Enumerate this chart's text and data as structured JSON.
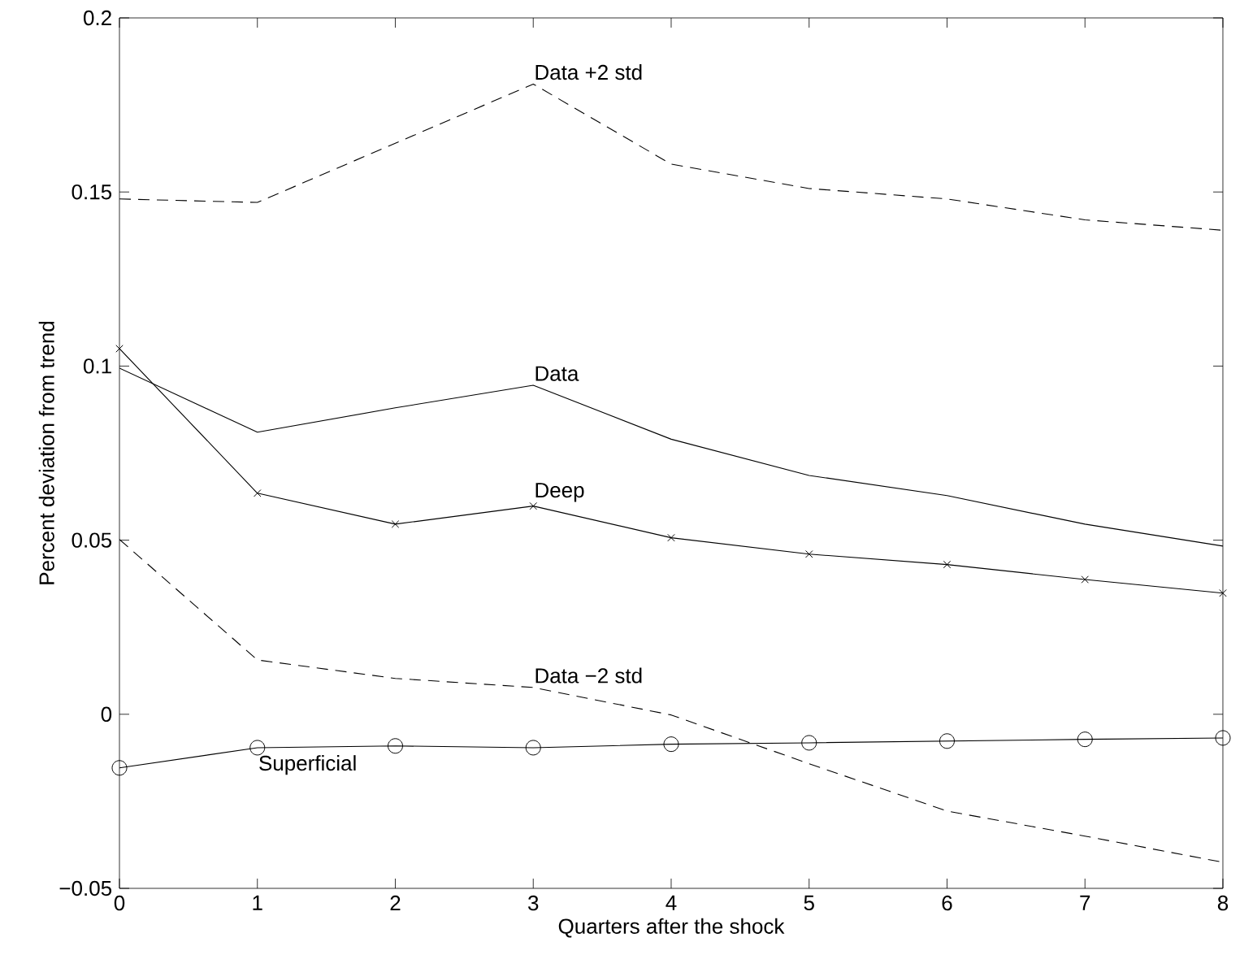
{
  "chart_data": {
    "type": "line",
    "xlabel": "Quarters after the shock",
    "ylabel": "Percent deviation from trend",
    "x": [
      0,
      1,
      2,
      3,
      4,
      5,
      6,
      7,
      8
    ],
    "series": [
      {
        "name": "Data +2 std",
        "color": "#000000",
        "line_style": "dashed",
        "marker": "none",
        "values": [
          0.148,
          0.147,
          0.164,
          0.181,
          0.158,
          0.151,
          0.148,
          0.142,
          0.139
        ]
      },
      {
        "name": "Data",
        "color": "#000000",
        "line_style": "solid",
        "marker": "none",
        "values": [
          0.0994,
          0.081,
          0.088,
          0.0945,
          0.079,
          0.0686,
          0.0628,
          0.0546,
          0.0483
        ]
      },
      {
        "name": "Deep",
        "color": "#000000",
        "line_style": "solid",
        "marker": "cross",
        "values": [
          0.105,
          0.0635,
          0.0546,
          0.0598,
          0.0507,
          0.046,
          0.043,
          0.0387,
          0.0348
        ]
      },
      {
        "name": "Data −2 std",
        "color": "#000000",
        "line_style": "dashed",
        "marker": "none",
        "values": [
          0.0502,
          0.0156,
          0.0103,
          0.0077,
          -0.0002,
          -0.0142,
          -0.0278,
          -0.035,
          -0.0425
        ]
      },
      {
        "name": "Superficial",
        "color": "#000000",
        "line_style": "solid",
        "marker": "circle",
        "values": [
          -0.0154,
          -0.0096,
          -0.0091,
          -0.0096,
          -0.0086,
          -0.0082,
          -0.0077,
          -0.0072,
          -0.0068
        ]
      }
    ],
    "xlim": [
      0,
      8
    ],
    "ylim": [
      -0.05,
      0.2
    ],
    "xticks": [
      0,
      1,
      2,
      3,
      4,
      5,
      6,
      7,
      8
    ],
    "yticks": [
      {
        "value": -0.05,
        "label": "−0.05"
      },
      0,
      0.05,
      0.1,
      0.15,
      0.2
    ],
    "grid": false
  }
}
